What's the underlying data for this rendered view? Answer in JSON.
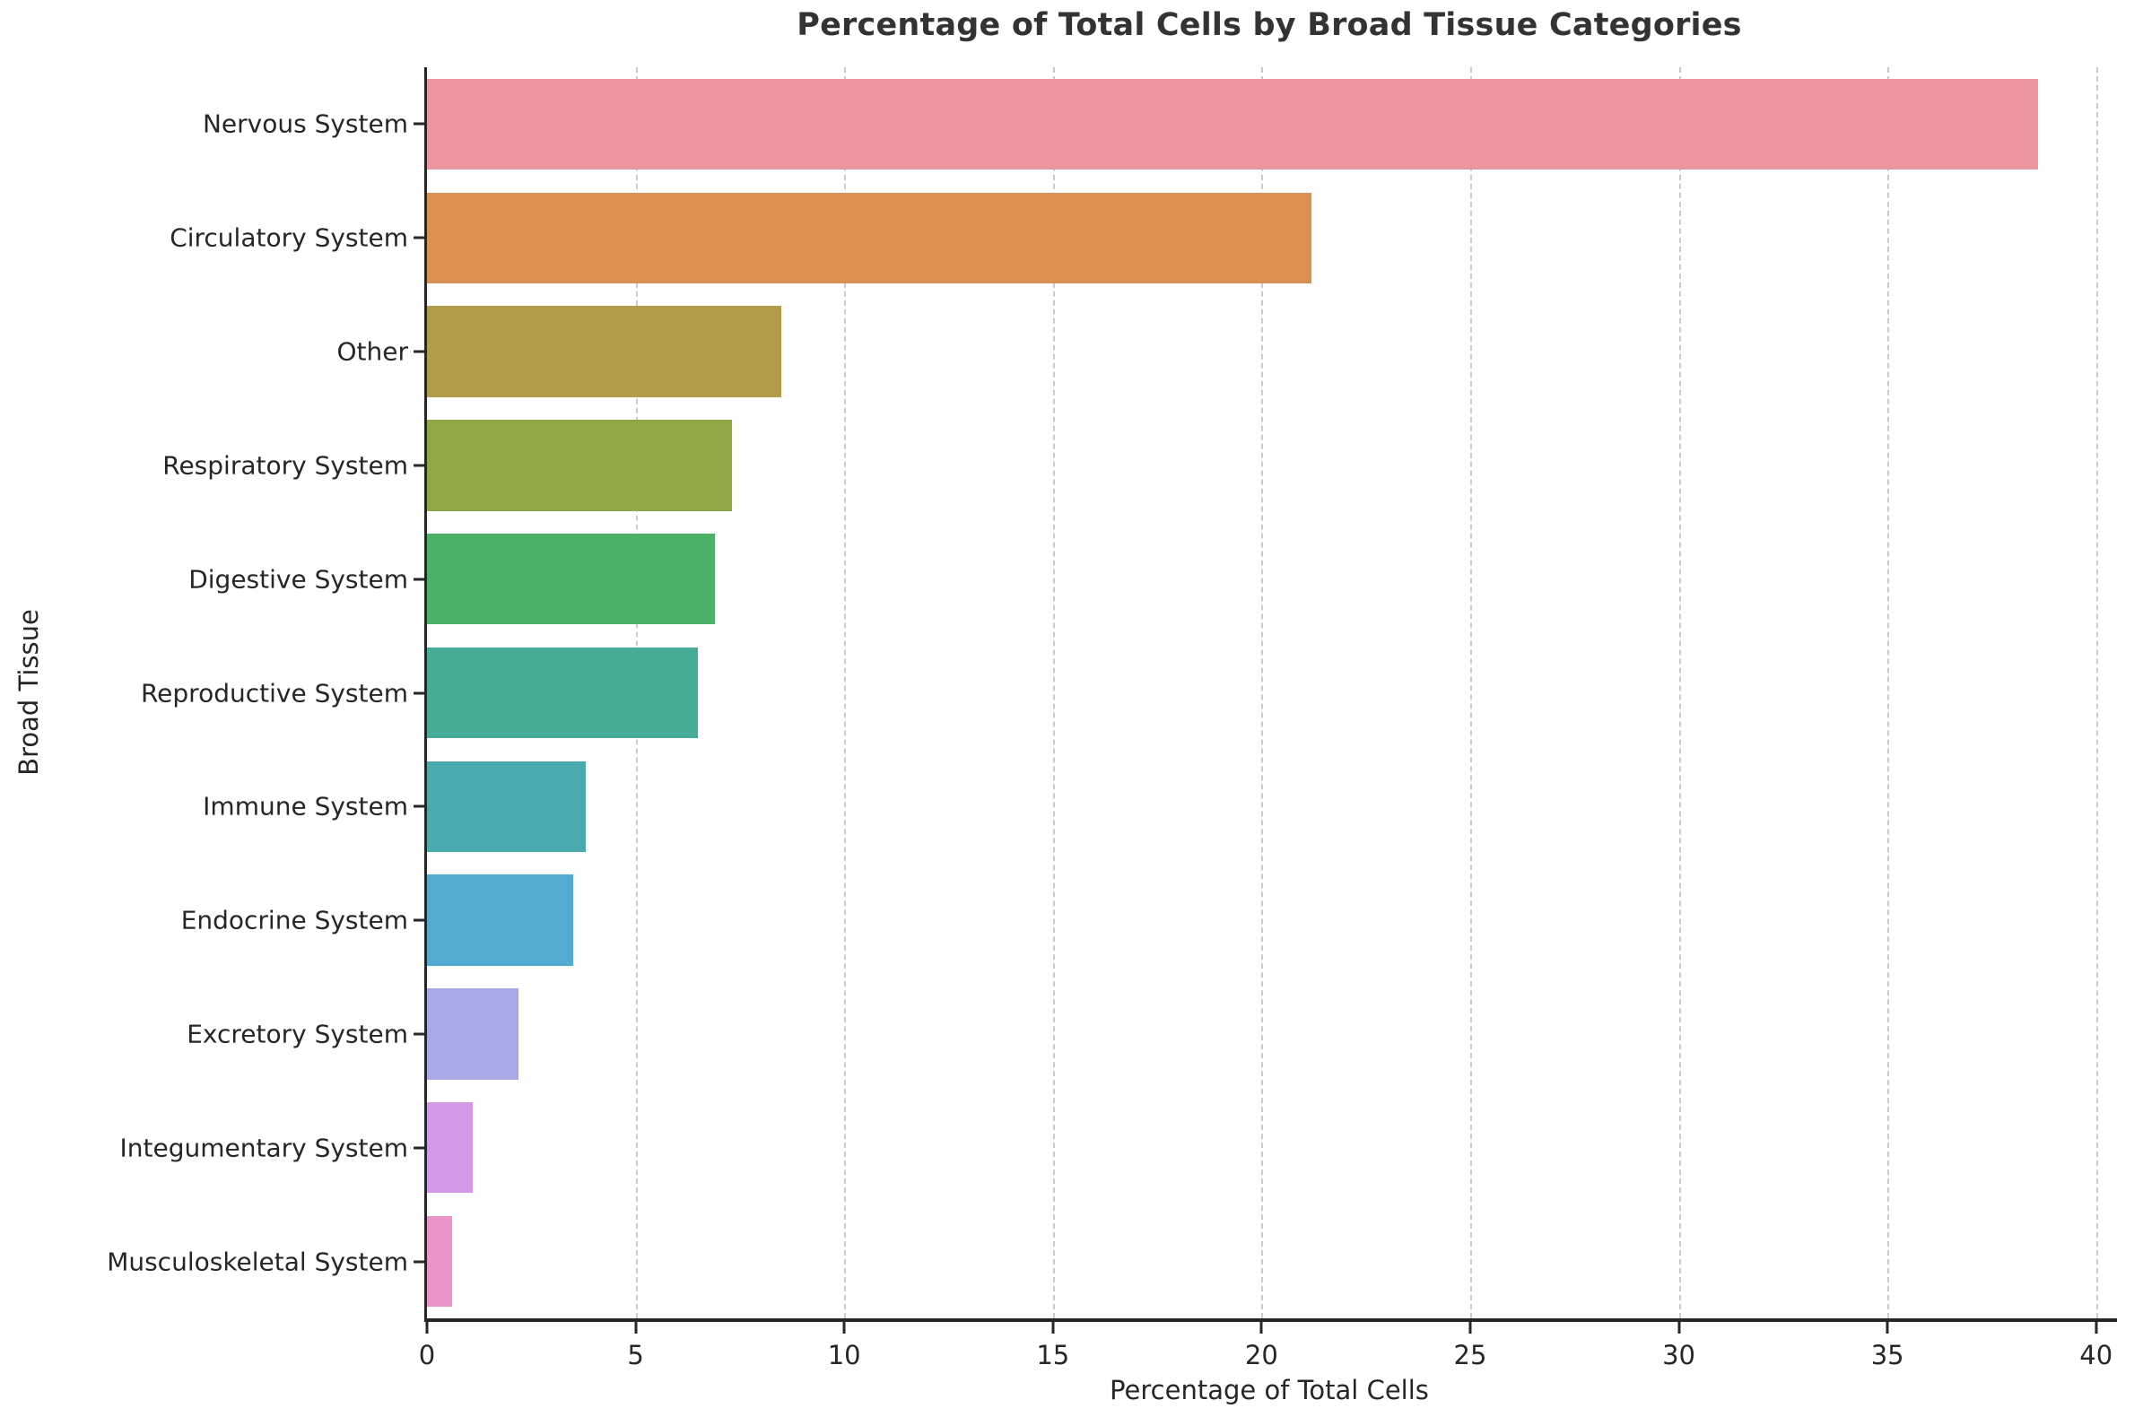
{
  "chart_data": {
    "type": "bar",
    "orientation": "horizontal",
    "title": "Percentage of Total Cells by Broad Tissue Categories",
    "xlabel": "Percentage of Total Cells",
    "ylabel": "Broad Tissue",
    "categories": [
      "Nervous System",
      "Circulatory System",
      "Other",
      "Respiratory System",
      "Digestive System",
      "Reproductive System",
      "Immune System",
      "Endocrine System",
      "Excretory System",
      "Integumentary System",
      "Musculoskeletal System"
    ],
    "values": [
      38.6,
      21.2,
      8.5,
      7.3,
      6.9,
      6.5,
      3.8,
      3.5,
      2.2,
      1.1,
      0.6
    ],
    "bar_colors": [
      "#e9949f",
      "#d99050",
      "#b29c49",
      "#8da845",
      "#4bb166",
      "#46ab97",
      "#4baaaf",
      "#55aad3",
      "#a6a9e5",
      "#d598e6",
      "#e994c8"
    ],
    "xlim": [
      0,
      40.5
    ],
    "xticks": [
      0,
      5,
      10,
      15,
      20,
      25,
      30,
      35,
      40
    ],
    "grid": "vertical-dashed",
    "legend": "none",
    "style": {
      "background": "#ffffff",
      "axis_color": "#262626",
      "grid_color": "#cbcbcb",
      "title_color": "#333333"
    }
  }
}
